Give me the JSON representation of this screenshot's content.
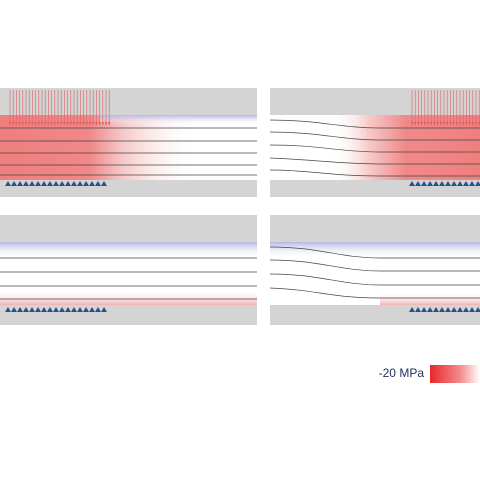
{
  "colorbar": {
    "label": "-20 MPa"
  }
}
